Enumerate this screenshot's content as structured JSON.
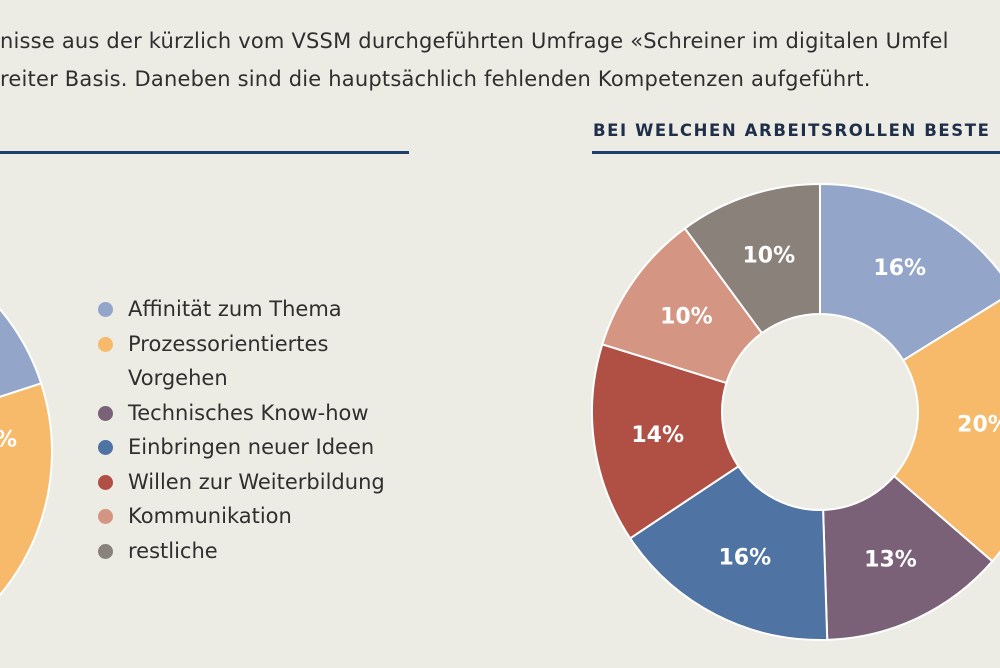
{
  "intro": {
    "line1": "nisse aus der kürzlich vom VSSM durchgeführten Umfrage «Schreiner im digitalen Umfel",
    "line2": "reiter Basis. Daneben sind die hauptsächlich fehlenden Kompetenzen aufgeführt."
  },
  "right_title": "BEI WELCHEN ARBEITSROLLEN BESTE",
  "legend": [
    {
      "label": "Affinität zum Thema",
      "color": "#93a6c9"
    },
    {
      "label": "Prozessorientiertes",
      "label2": "Vorgehen",
      "color": "#f7b96a"
    },
    {
      "label": "Technisches Know-how",
      "color": "#7b6178"
    },
    {
      "label": "Einbringen neuer Ideen",
      "color": "#4f73a3"
    },
    {
      "label": "Willen zur Weiterbildung",
      "color": "#b04f44"
    },
    {
      "label": "Kommunikation",
      "color": "#d49582"
    },
    {
      "label": "restliche",
      "color": "#8a817a"
    }
  ],
  "chart_data": [
    {
      "type": "pie",
      "variant": "donut",
      "title": "BEI WELCHEN ARBEITSROLLEN BESTE",
      "categories": [
        "Affinität zum Thema",
        "Prozessorientiertes Vorgehen",
        "Technisches Know-how",
        "Einbringen neuer Ideen",
        "Willen zur Weiterbildung",
        "Kommunikation",
        "restliche"
      ],
      "values": [
        16,
        20,
        13,
        16,
        14,
        10,
        10
      ],
      "data_labels": [
        "16%",
        "20%",
        "13%",
        "16%",
        "14%",
        "10%",
        "10%"
      ],
      "colors": [
        "#93a6c9",
        "#f7b96a",
        "#7b6178",
        "#4f73a3",
        "#b04f44",
        "#d49582",
        "#8a817a"
      ]
    },
    {
      "type": "pie",
      "variant": "donut",
      "partially_visible": true,
      "visible_slices": [
        {
          "category": "Affinität zum Thema",
          "color": "#93a6c9"
        },
        {
          "category": "Prozessorientiertes Vorgehen",
          "color": "#f7b96a",
          "label": "%"
        }
      ]
    }
  ]
}
